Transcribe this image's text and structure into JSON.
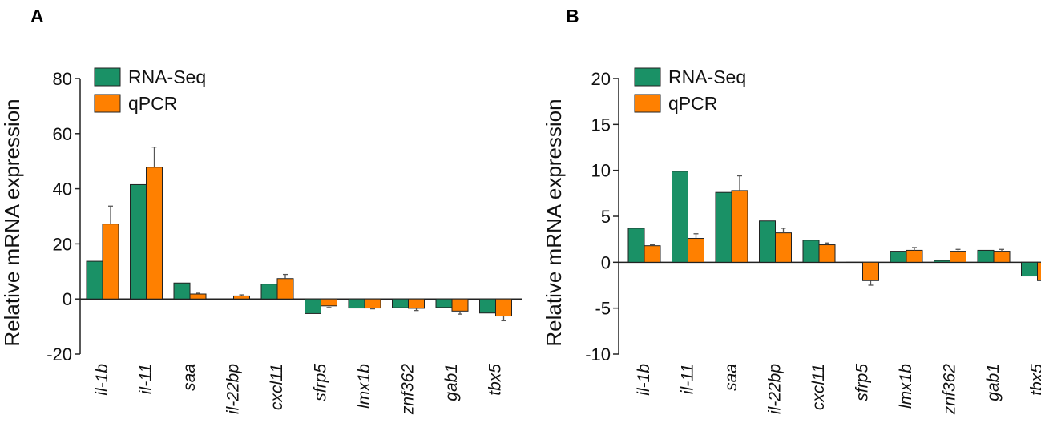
{
  "chart_data": [
    {
      "panel": "A",
      "type": "bar",
      "ylabel": "Relative mRNA expression",
      "ylim": [
        -20,
        80
      ],
      "yticks": [
        -20,
        0,
        20,
        40,
        60,
        80
      ],
      "categories": [
        "il-1b",
        "il-11",
        "saa",
        "il-22bp",
        "cxcl11",
        "sfrp5",
        "lmx1b",
        "znf362",
        "gab1",
        "tbx5"
      ],
      "series": [
        {
          "name": "RNA-Seq",
          "color": "#1a9166",
          "values": [
            13.7,
            41.5,
            5.8,
            0,
            5.4,
            -5.3,
            -3.3,
            -3.2,
            -3.1,
            -5.1
          ],
          "errors": [
            0,
            0,
            0,
            0,
            0,
            0,
            0,
            0,
            0,
            0
          ]
        },
        {
          "name": "qPCR",
          "color": "#ff8000",
          "values": [
            27.2,
            47.8,
            1.8,
            1.1,
            7.4,
            -2.5,
            -3.3,
            -3.4,
            -4.4,
            -6.2
          ],
          "errors": [
            6.5,
            7.3,
            0.3,
            0.4,
            1.5,
            0.6,
            0.3,
            0.8,
            1.1,
            1.7
          ]
        }
      ]
    },
    {
      "panel": "B",
      "type": "bar",
      "ylabel": "Relative mRNA expression",
      "ylim": [
        -10,
        20
      ],
      "yticks": [
        -10,
        -5,
        0,
        5,
        10,
        15,
        20
      ],
      "categories": [
        "il-1b",
        "il-11",
        "saa",
        "il-22bp",
        "cxcl11",
        "sfrp5",
        "lmx1b",
        "znf362",
        "gab1",
        "tbx5"
      ],
      "series": [
        {
          "name": "RNA-Seq",
          "color": "#1a9166",
          "values": [
            3.7,
            9.9,
            7.6,
            4.5,
            2.4,
            0,
            1.2,
            0.2,
            1.3,
            -1.5
          ],
          "errors": [
            0,
            0,
            0,
            0,
            0,
            0,
            0,
            0,
            0,
            0
          ]
        },
        {
          "name": "qPCR",
          "color": "#ff8000",
          "values": [
            1.8,
            2.6,
            7.8,
            3.2,
            1.9,
            -2.0,
            1.3,
            1.2,
            1.2,
            -2.0
          ],
          "errors": [
            0.1,
            0.5,
            1.6,
            0.5,
            0.2,
            0.5,
            0.3,
            0.2,
            0.2,
            0.2
          ]
        }
      ]
    }
  ]
}
